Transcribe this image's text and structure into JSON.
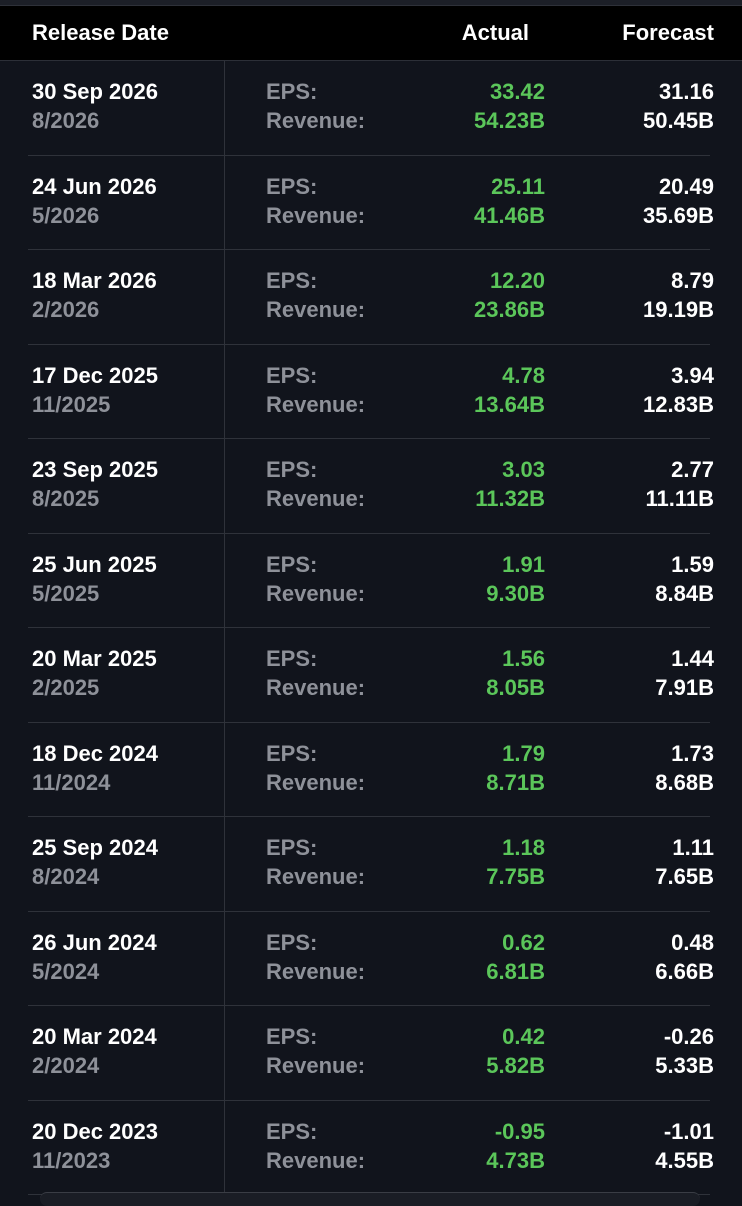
{
  "header": {
    "release_date": "Release Date",
    "actual": "Actual",
    "forecast": "Forecast"
  },
  "labels": {
    "eps": "EPS:",
    "revenue": "Revenue:"
  },
  "colors": {
    "background": "#11141c",
    "header_background": "#000000",
    "beat_green": "#5bc65a",
    "muted_text": "#8e9199",
    "primary_text": "#ffffff"
  },
  "rows": [
    {
      "date": "30 Sep 2026",
      "period": "8/2026",
      "eps_actual": "33.42",
      "rev_actual": "54.23B",
      "eps_forecast": "31.16",
      "rev_forecast": "50.45B"
    },
    {
      "date": "24 Jun 2026",
      "period": "5/2026",
      "eps_actual": "25.11",
      "rev_actual": "41.46B",
      "eps_forecast": "20.49",
      "rev_forecast": "35.69B"
    },
    {
      "date": "18 Mar 2026",
      "period": "2/2026",
      "eps_actual": "12.20",
      "rev_actual": "23.86B",
      "eps_forecast": "8.79",
      "rev_forecast": "19.19B"
    },
    {
      "date": "17 Dec 2025",
      "period": "11/2025",
      "eps_actual": "4.78",
      "rev_actual": "13.64B",
      "eps_forecast": "3.94",
      "rev_forecast": "12.83B"
    },
    {
      "date": "23 Sep 2025",
      "period": "8/2025",
      "eps_actual": "3.03",
      "rev_actual": "11.32B",
      "eps_forecast": "2.77",
      "rev_forecast": "11.11B"
    },
    {
      "date": "25 Jun 2025",
      "period": "5/2025",
      "eps_actual": "1.91",
      "rev_actual": "9.30B",
      "eps_forecast": "1.59",
      "rev_forecast": "8.84B"
    },
    {
      "date": "20 Mar 2025",
      "period": "2/2025",
      "eps_actual": "1.56",
      "rev_actual": "8.05B",
      "eps_forecast": "1.44",
      "rev_forecast": "7.91B"
    },
    {
      "date": "18 Dec 2024",
      "period": "11/2024",
      "eps_actual": "1.79",
      "rev_actual": "8.71B",
      "eps_forecast": "1.73",
      "rev_forecast": "8.68B"
    },
    {
      "date": "25 Sep 2024",
      "period": "8/2024",
      "eps_actual": "1.18",
      "rev_actual": "7.75B",
      "eps_forecast": "1.11",
      "rev_forecast": "7.65B"
    },
    {
      "date": "26 Jun 2024",
      "period": "5/2024",
      "eps_actual": "0.62",
      "rev_actual": "6.81B",
      "eps_forecast": "0.48",
      "rev_forecast": "6.66B"
    },
    {
      "date": "20 Mar 2024",
      "period": "2/2024",
      "eps_actual": "0.42",
      "rev_actual": "5.82B",
      "eps_forecast": "-0.26",
      "rev_forecast": "5.33B"
    },
    {
      "date": "20 Dec 2023",
      "period": "11/2023",
      "eps_actual": "-0.95",
      "rev_actual": "4.73B",
      "eps_forecast": "-1.01",
      "rev_forecast": "4.55B"
    }
  ]
}
